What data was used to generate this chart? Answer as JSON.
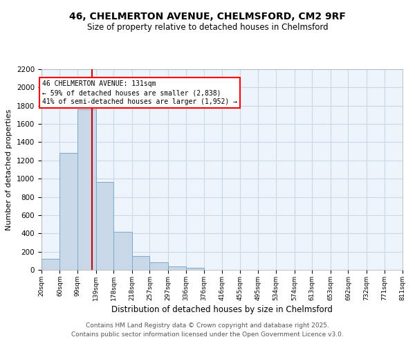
{
  "title_line1": "46, CHELMERTON AVENUE, CHELMSFORD, CM2 9RF",
  "title_line2": "Size of property relative to detached houses in Chelmsford",
  "xlabel": "Distribution of detached houses by size in Chelmsford",
  "ylabel": "Number of detached properties",
  "bin_edges": [
    20,
    60,
    99,
    139,
    178,
    218,
    257,
    297,
    336,
    376,
    416,
    455,
    495,
    534,
    574,
    613,
    653,
    692,
    732,
    771,
    811
  ],
  "bin_labels": [
    "20sqm",
    "60sqm",
    "99sqm",
    "139sqm",
    "178sqm",
    "218sqm",
    "257sqm",
    "297sqm",
    "336sqm",
    "376sqm",
    "416sqm",
    "455sqm",
    "495sqm",
    "534sqm",
    "574sqm",
    "613sqm",
    "653sqm",
    "692sqm",
    "732sqm",
    "771sqm",
    "811sqm"
  ],
  "counts": [
    120,
    1280,
    1760,
    960,
    420,
    150,
    80,
    40,
    20,
    0,
    0,
    0,
    0,
    0,
    0,
    0,
    0,
    0,
    0,
    0
  ],
  "bar_color": "#c8d8e8",
  "bar_edge_color": "#7aaacc",
  "grid_color": "#c8d8e8",
  "bg_color": "#eef4fb",
  "vline_x": 131,
  "vline_color": "#cc0000",
  "ylim": [
    0,
    2200
  ],
  "yticks": [
    0,
    200,
    400,
    600,
    800,
    1000,
    1200,
    1400,
    1600,
    1800,
    2000,
    2200
  ],
  "annotation_text": "46 CHELMERTON AVENUE: 131sqm\n← 59% of detached houses are smaller (2,838)\n41% of semi-detached houses are larger (1,952) →",
  "footer_line1": "Contains HM Land Registry data © Crown copyright and database right 2025.",
  "footer_line2": "Contains public sector information licensed under the Open Government Licence v3.0."
}
